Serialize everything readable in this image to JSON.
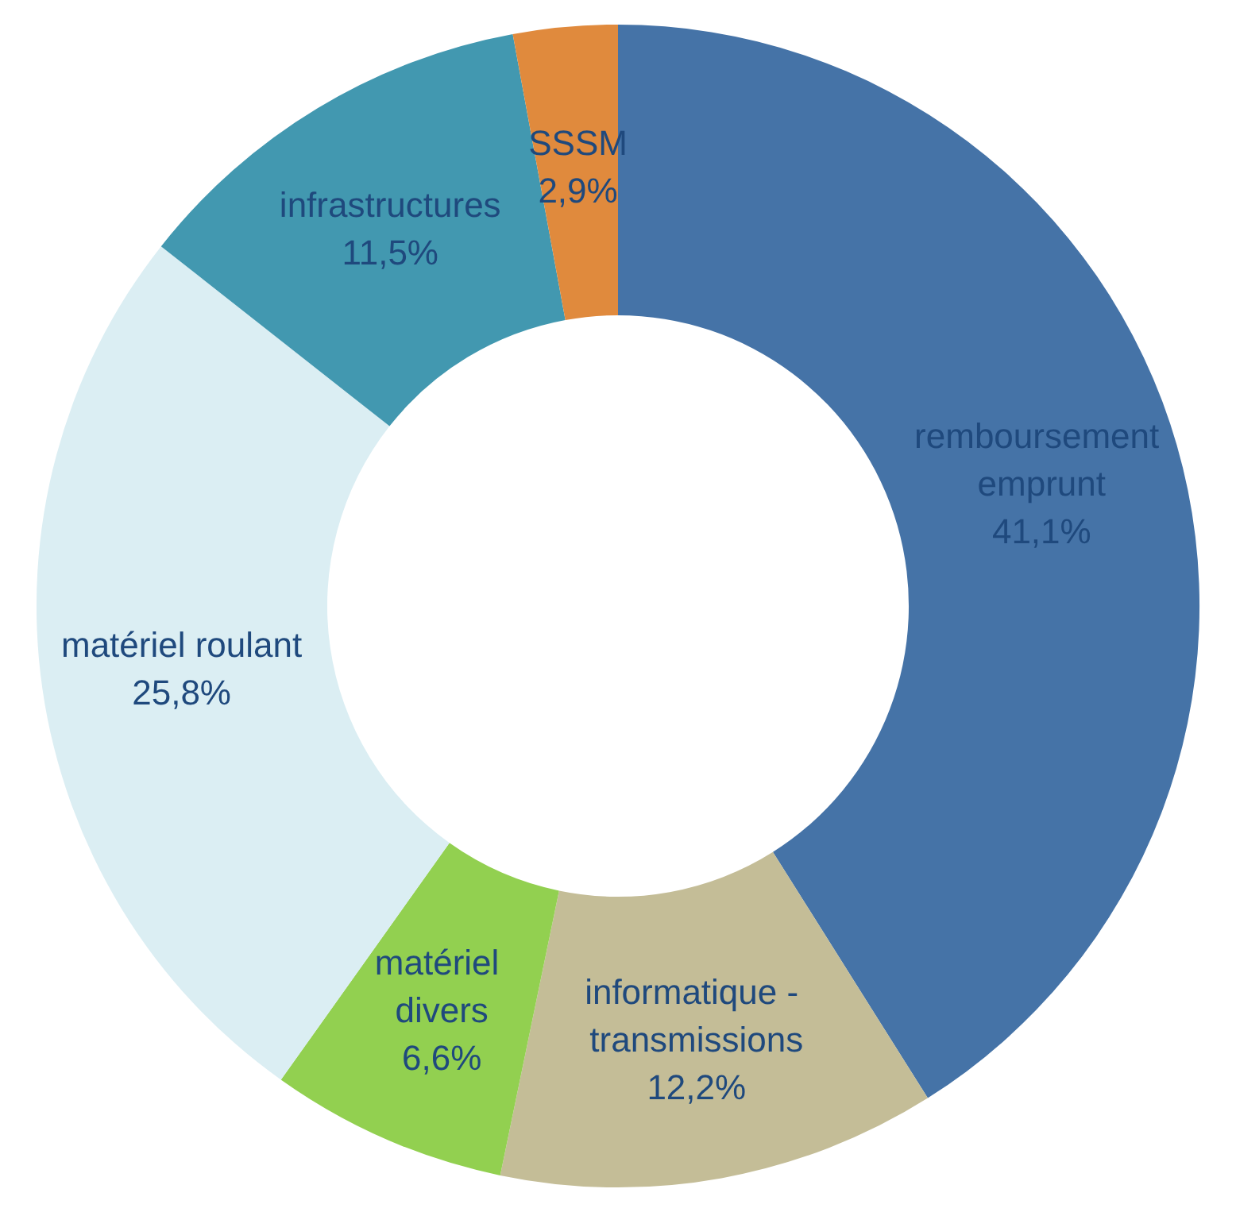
{
  "chart_data": {
    "type": "donut",
    "categories": [
      "remboursement emprunt",
      "informatique - transmissions",
      "matériel divers",
      "matériel roulant",
      "infrastructures",
      "SSSM"
    ],
    "values": [
      41.1,
      12.2,
      6.6,
      25.8,
      11.5,
      2.9
    ],
    "value_labels": [
      "41,1%",
      "12,2%",
      "6,6%",
      "25,8%",
      "11,5%",
      "2,9%"
    ],
    "colors": [
      "#4573a7",
      "#c4bd97",
      "#92d050",
      "#dbeef3",
      "#4298b0",
      "#e08a3d"
    ],
    "legend": false
  }
}
